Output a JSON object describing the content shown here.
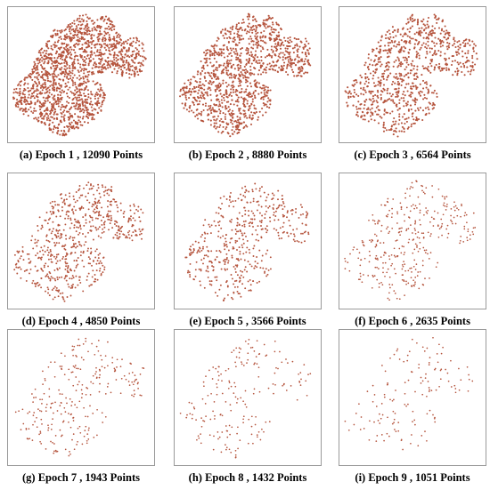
{
  "figure": {
    "marker_color": "#b5543d",
    "panels": [
      {
        "caption": "(a) Epoch 1 , 12090 Points",
        "epoch": 1,
        "points": 12090
      },
      {
        "caption": "(b) Epoch 2 , 8880 Points",
        "epoch": 2,
        "points": 8880
      },
      {
        "caption": "(c) Epoch 3 , 6564 Points",
        "epoch": 3,
        "points": 6564
      },
      {
        "caption": "(d) Epoch 4 , 4850 Points",
        "epoch": 4,
        "points": 4850
      },
      {
        "caption": "(e) Epoch 5 , 3566 Points",
        "epoch": 5,
        "points": 3566
      },
      {
        "caption": "(f) Epoch 6 , 2635 Points",
        "epoch": 6,
        "points": 2635
      },
      {
        "caption": "(g) Epoch 7 , 1943 Points",
        "epoch": 7,
        "points": 1943
      },
      {
        "caption": "(h) Epoch 8 , 1432 Points",
        "epoch": 8,
        "points": 1432
      },
      {
        "caption": "(i) Epoch 9 , 1051 Points",
        "epoch": 9,
        "points": 1051
      }
    ]
  }
}
